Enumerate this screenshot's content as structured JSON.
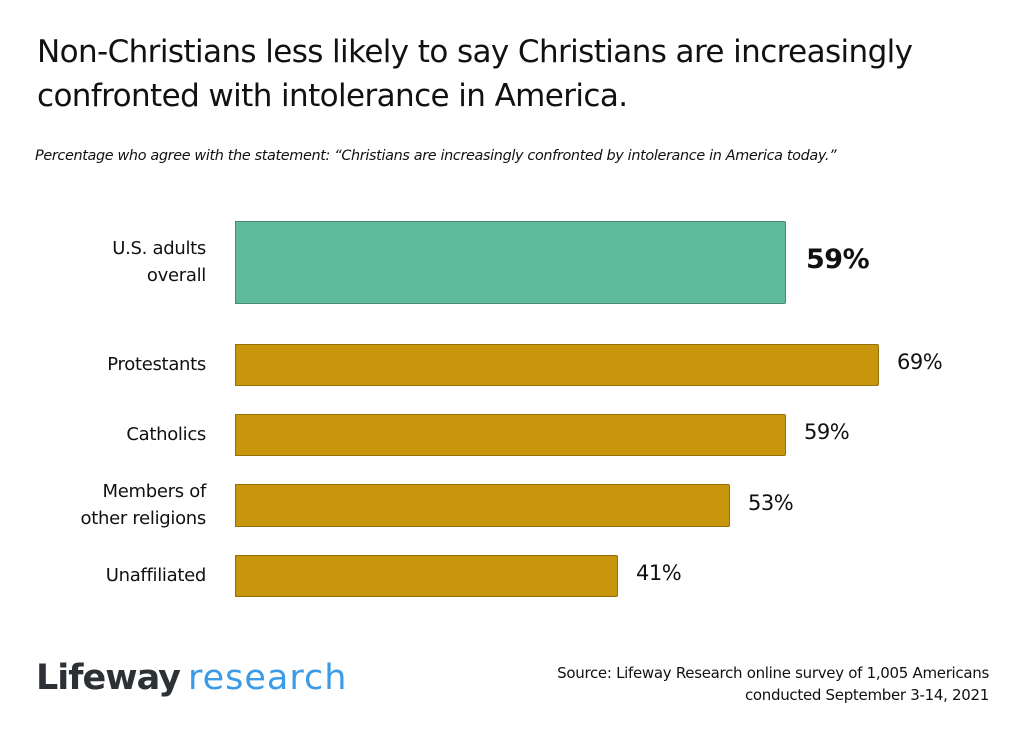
{
  "chart_data": {
    "type": "bar",
    "orientation": "horizontal",
    "title": "Non-Christians less likely to say Christians are increasingly confronted with intolerance in America.",
    "subtitle": "Percentage who agree with the statement: “Christians are increasingly confronted by intolerance in America today.”",
    "categories": [
      [
        "U.S. adults",
        "overall"
      ],
      [
        "Protestants"
      ],
      [
        "Catholics"
      ],
      [
        "Members of",
        "other religions"
      ],
      [
        "Unaffiliated"
      ]
    ],
    "values": [
      59,
      69,
      59,
      53,
      41
    ],
    "value_labels": [
      "59%",
      "69%",
      "59%",
      "53%",
      "41%"
    ],
    "colors": [
      "#5fba9b",
      "#c7960c",
      "#c7960c",
      "#c7960c",
      "#c7960c"
    ],
    "unit": "%",
    "xlabel": "",
    "ylabel": "",
    "xlim": [
      0,
      100
    ],
    "grid": false,
    "legend": "none"
  },
  "branding": {
    "logo_part1": "Lifeway",
    "logo_part2": "research",
    "logo_color_dark": "#2d3136",
    "logo_color_accent": "#3b9be6"
  },
  "source": {
    "line1": "Source: Lifeway Research online survey of 1,005 Americans",
    "line2": "conducted September 3-14, 2021"
  }
}
